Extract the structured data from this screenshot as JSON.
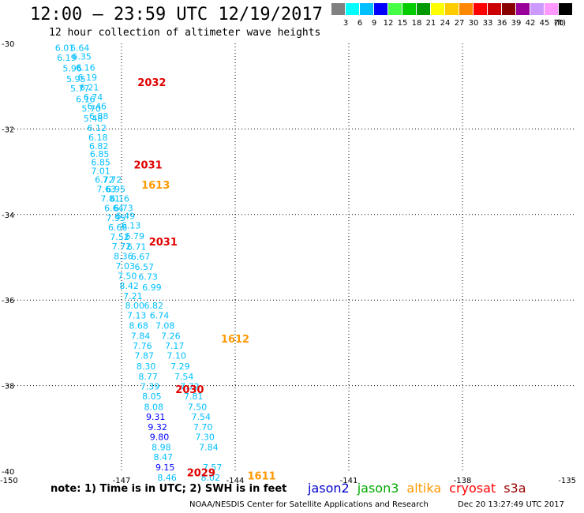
{
  "title": "12:00 – 23:59 UTC 12/19/2017",
  "subtitle": "12 hour collection of altimeter wave heights",
  "color_scale": {
    "unit": "(ft)",
    "steps": [
      {
        "label": "3",
        "color": "#808080"
      },
      {
        "label": "6",
        "color": "#00ffff"
      },
      {
        "label": "9",
        "color": "#00bfff"
      },
      {
        "label": "12",
        "color": "#0000ff"
      },
      {
        "label": "15",
        "color": "#44ff44"
      },
      {
        "label": "18",
        "color": "#00cc00"
      },
      {
        "label": "21",
        "color": "#009900"
      },
      {
        "label": "24",
        "color": "#ffff00"
      },
      {
        "label": "27",
        "color": "#ffcc00"
      },
      {
        "label": "30",
        "color": "#ff8800"
      },
      {
        "label": "33",
        "color": "#ff0000"
      },
      {
        "label": "36",
        "color": "#cc0000"
      },
      {
        "label": "39",
        "color": "#880000"
      },
      {
        "label": "42",
        "color": "#990099"
      },
      {
        "label": "45",
        "color": "#cc99ff"
      },
      {
        "label": "70",
        "color": "#ff99ff"
      },
      {
        "label": "",
        "color": "#000000"
      }
    ]
  },
  "axes": {
    "lat_labels": [
      "-30",
      "-32",
      "-34",
      "-36",
      "-38",
      "-40"
    ],
    "lon_labels": [
      "-150",
      "-147",
      "-144",
      "-141",
      "-138",
      "-135"
    ]
  },
  "wave_colors": {
    "light": "#00bfff",
    "dark": "#0000ff"
  },
  "track1": [
    {
      "lon": -148.5,
      "lat": -30.1,
      "v": "6.01"
    },
    {
      "lon": -148.1,
      "lat": -30.1,
      "v": "6.64"
    },
    {
      "lon": -148.45,
      "lat": -30.33,
      "v": "6.19"
    },
    {
      "lon": -148.05,
      "lat": -30.3,
      "v": "6.35"
    },
    {
      "lon": -148.3,
      "lat": -30.58,
      "v": "5.96"
    },
    {
      "lon": -147.95,
      "lat": -30.56,
      "v": "6.16"
    },
    {
      "lon": -148.2,
      "lat": -30.83,
      "v": "5.95"
    },
    {
      "lon": -147.9,
      "lat": -30.79,
      "v": "6.19"
    },
    {
      "lon": -148.1,
      "lat": -31.05,
      "v": "5.77"
    },
    {
      "lon": -147.85,
      "lat": -31.02,
      "v": "6.21"
    },
    {
      "lon": -147.95,
      "lat": -31.3,
      "v": "6.16"
    },
    {
      "lon": -147.75,
      "lat": -31.25,
      "v": "6.74"
    },
    {
      "lon": -147.8,
      "lat": -31.52,
      "v": "5.70"
    },
    {
      "lon": -147.65,
      "lat": -31.47,
      "v": "6.46"
    },
    {
      "lon": -147.75,
      "lat": -31.75,
      "v": "5.48"
    },
    {
      "lon": -147.6,
      "lat": -31.7,
      "v": "6.88"
    },
    {
      "lon": -147.65,
      "lat": -31.97,
      "v": "6.12"
    },
    {
      "lon": -147.62,
      "lat": -32.2,
      "v": "6.18"
    },
    {
      "lon": -147.6,
      "lat": -32.4,
      "v": "6.82"
    },
    {
      "lon": -147.58,
      "lat": -32.58,
      "v": "6.85"
    },
    {
      "lon": -147.55,
      "lat": -32.78,
      "v": "6.85"
    },
    {
      "lon": -147.55,
      "lat": -32.98,
      "v": "7.01"
    },
    {
      "lon": -147.45,
      "lat": -33.18,
      "v": "6.72"
    },
    {
      "lon": -147.25,
      "lat": -33.18,
      "v": "7.72"
    },
    {
      "lon": -147.4,
      "lat": -33.4,
      "v": "7.63"
    },
    {
      "lon": -147.15,
      "lat": -33.4,
      "v": "6.95"
    },
    {
      "lon": -147.3,
      "lat": -33.63,
      "v": "7.81"
    },
    {
      "lon": -147.05,
      "lat": -33.63,
      "v": "6.16"
    },
    {
      "lon": -147.2,
      "lat": -33.85,
      "v": "6.64"
    },
    {
      "lon": -146.95,
      "lat": -33.85,
      "v": "6.73"
    },
    {
      "lon": -147.15,
      "lat": -34.08,
      "v": "7.95"
    },
    {
      "lon": -146.9,
      "lat": -34.03,
      "v": "6.49"
    },
    {
      "lon": -147.1,
      "lat": -34.3,
      "v": "6.66"
    },
    {
      "lon": -146.75,
      "lat": -34.25,
      "v": "6.13"
    },
    {
      "lon": -147.05,
      "lat": -34.52,
      "v": "7.52"
    },
    {
      "lon": -146.65,
      "lat": -34.5,
      "v": "6.79"
    },
    {
      "lon": -147.0,
      "lat": -34.74,
      "v": "7.72"
    },
    {
      "lon": -146.6,
      "lat": -34.75,
      "v": "6.71"
    },
    {
      "lon": -146.95,
      "lat": -34.97,
      "v": "8.36"
    },
    {
      "lon": -146.5,
      "lat": -34.98,
      "v": "6.67"
    },
    {
      "lon": -146.9,
      "lat": -35.2,
      "v": "7.03"
    },
    {
      "lon": -146.4,
      "lat": -35.22,
      "v": "6.57"
    },
    {
      "lon": -146.85,
      "lat": -35.43,
      "v": "7.50"
    },
    {
      "lon": -146.3,
      "lat": -35.45,
      "v": "6.73"
    },
    {
      "lon": -146.8,
      "lat": -35.66,
      "v": "8.42"
    },
    {
      "lon": -146.2,
      "lat": -35.7,
      "v": "6.99"
    },
    {
      "lon": -146.7,
      "lat": -35.9,
      "v": "7.21"
    },
    {
      "lon": -146.65,
      "lat": -36.13,
      "v": "8.00"
    },
    {
      "lon": -146.15,
      "lat": -36.13,
      "v": "6.82"
    },
    {
      "lon": -146.6,
      "lat": -36.36,
      "v": "7.13"
    },
    {
      "lon": -146.0,
      "lat": -36.36,
      "v": "6.74"
    },
    {
      "lon": -146.55,
      "lat": -36.6,
      "v": "8.68"
    },
    {
      "lon": -145.85,
      "lat": -36.6,
      "v": "7.08"
    },
    {
      "lon": -146.5,
      "lat": -36.84,
      "v": "7.84"
    },
    {
      "lon": -145.7,
      "lat": -36.84,
      "v": "7.26"
    },
    {
      "lon": -146.45,
      "lat": -37.07,
      "v": "7.76"
    },
    {
      "lon": -145.6,
      "lat": -37.07,
      "v": "7.17"
    },
    {
      "lon": -146.4,
      "lat": -37.3,
      "v": "7.87"
    },
    {
      "lon": -145.55,
      "lat": -37.3,
      "v": "7.10"
    },
    {
      "lon": -146.35,
      "lat": -37.55,
      "v": "8.30"
    },
    {
      "lon": -145.45,
      "lat": -37.55,
      "v": "7.29"
    },
    {
      "lon": -146.3,
      "lat": -37.79,
      "v": "8.77"
    },
    {
      "lon": -145.35,
      "lat": -37.79,
      "v": "7.54"
    },
    {
      "lon": -146.25,
      "lat": -38.02,
      "v": "7.39"
    },
    {
      "lon": -145.2,
      "lat": -38.02,
      "v": "7.72"
    },
    {
      "lon": -146.2,
      "lat": -38.25,
      "v": "8.05"
    },
    {
      "lon": -145.1,
      "lat": -38.25,
      "v": "7.81"
    },
    {
      "lon": -146.15,
      "lat": -38.5,
      "v": "8.08"
    },
    {
      "lon": -145.0,
      "lat": -38.5,
      "v": "7.50"
    },
    {
      "lon": -146.1,
      "lat": -38.73,
      "v": "9.31",
      "dark": true
    },
    {
      "lon": -144.9,
      "lat": -38.73,
      "v": "7.54"
    },
    {
      "lon": -146.05,
      "lat": -38.97,
      "v": "9.32",
      "dark": true
    },
    {
      "lon": -144.85,
      "lat": -38.97,
      "v": "7.70"
    },
    {
      "lon": -146.0,
      "lat": -39.2,
      "v": "9.80",
      "dark": true
    },
    {
      "lon": -144.8,
      "lat": -39.2,
      "v": "7.30"
    },
    {
      "lon": -145.95,
      "lat": -39.44,
      "v": "8.98"
    },
    {
      "lon": -144.7,
      "lat": -39.44,
      "v": "7.84"
    },
    {
      "lon": -145.9,
      "lat": -39.67,
      "v": "8.47"
    },
    {
      "lon": -145.85,
      "lat": -39.91,
      "v": "9.15",
      "dark": true
    },
    {
      "lon": -144.6,
      "lat": -39.91,
      "v": "7.57"
    },
    {
      "lon": -145.8,
      "lat": -40.15,
      "v": "8.46"
    },
    {
      "lon": -144.65,
      "lat": -40.15,
      "v": "8.02"
    }
  ],
  "pass_labels": [
    {
      "lon": -146.2,
      "lat": -30.9,
      "text": "2032",
      "color": "#e00000"
    },
    {
      "lon": -146.3,
      "lat": -32.83,
      "text": "2031",
      "color": "#e00000"
    },
    {
      "lon": -146.1,
      "lat": -33.3,
      "text": "1613",
      "color": "#ff9900"
    },
    {
      "lon": -145.9,
      "lat": -34.63,
      "text": "2031",
      "color": "#e00000"
    },
    {
      "lon": -144.0,
      "lat": -36.9,
      "text": "1612",
      "color": "#ff9900"
    },
    {
      "lon": -145.2,
      "lat": -38.08,
      "text": "2030",
      "color": "#e00000"
    },
    {
      "lon": -144.9,
      "lat": -40.03,
      "text": "2029",
      "color": "#e00000"
    },
    {
      "lon": -143.3,
      "lat": -40.1,
      "text": "1611",
      "color": "#ff9900"
    }
  ],
  "footer_note": "note: 1) Time is in UTC; 2) SWH is in feet",
  "satellites": [
    {
      "name": "jason2",
      "color": "#0000cc"
    },
    {
      "name": "jason3",
      "color": "#00aa00"
    },
    {
      "name": "altika",
      "color": "#ff9900"
    },
    {
      "name": "cryosat",
      "color": "#ff0000"
    },
    {
      "name": "s3a",
      "color": "#990000"
    }
  ],
  "credit": "NOAA/NESDIS Center for Satellite Applications and Research",
  "timestamp": "Dec 20 13:27:49 UTC 2017"
}
